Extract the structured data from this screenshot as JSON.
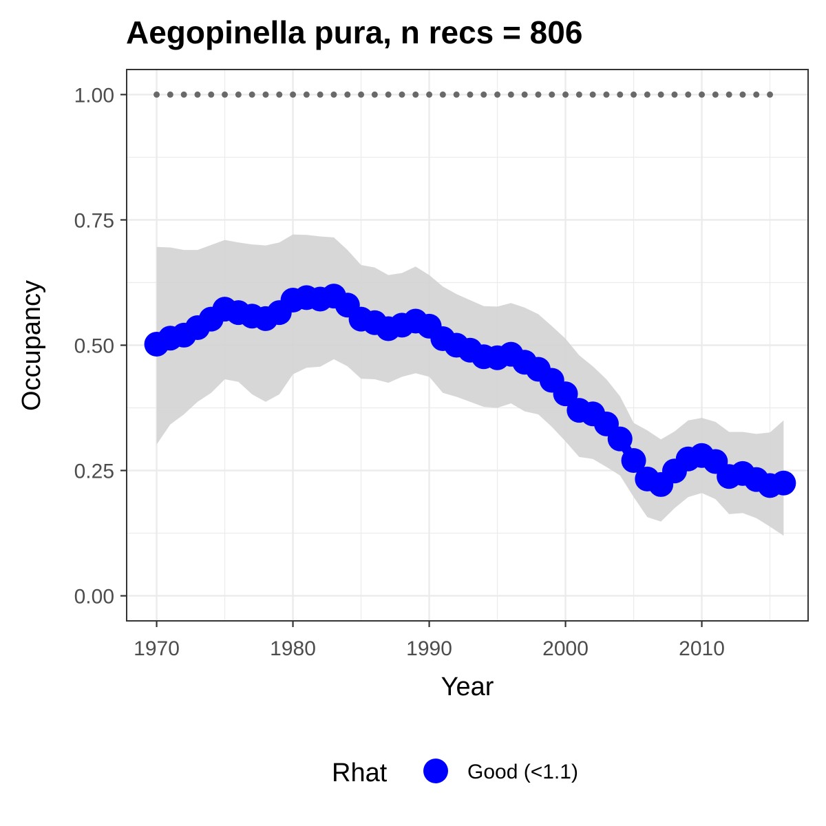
{
  "chart_data": {
    "type": "line",
    "title": "Aegopinella pura, n recs = 806",
    "xlabel": "Year",
    "ylabel": "Occupancy",
    "xlim": [
      1967.8,
      2017.8
    ],
    "ylim": [
      -0.05,
      1.05
    ],
    "x_ticks": [
      1970,
      1980,
      1990,
      2000,
      2010
    ],
    "x_tick_labels": [
      "1970",
      "1980",
      "1990",
      "2000",
      "2010"
    ],
    "y_ticks": [
      0,
      0.25,
      0.5,
      0.75,
      1.0
    ],
    "y_tick_labels": [
      "0.00",
      "0.25",
      "0.50",
      "0.75",
      "1.00"
    ],
    "grid": true,
    "x": [
      1970,
      1971,
      1972,
      1973,
      1974,
      1975,
      1976,
      1977,
      1978,
      1979,
      1980,
      1981,
      1982,
      1983,
      1984,
      1985,
      1986,
      1987,
      1988,
      1989,
      1990,
      1991,
      1992,
      1993,
      1994,
      1995,
      1996,
      1997,
      1998,
      1999,
      2000,
      2001,
      2002,
      2003,
      2004,
      2005,
      2006,
      2007,
      2008,
      2009,
      2010,
      2011,
      2012,
      2013,
      2014,
      2015,
      2016
    ],
    "series": [
      {
        "name": "Good (<1.1)",
        "color": "#0000ff",
        "values": [
          0.502,
          0.514,
          0.52,
          0.535,
          0.552,
          0.572,
          0.565,
          0.558,
          0.553,
          0.565,
          0.59,
          0.595,
          0.592,
          0.598,
          0.58,
          0.552,
          0.545,
          0.533,
          0.54,
          0.548,
          0.538,
          0.513,
          0.5,
          0.49,
          0.477,
          0.475,
          0.482,
          0.466,
          0.452,
          0.43,
          0.403,
          0.37,
          0.363,
          0.343,
          0.313,
          0.27,
          0.233,
          0.222,
          0.249,
          0.273,
          0.28,
          0.268,
          0.238,
          0.244,
          0.232,
          0.22,
          0.225
        ]
      }
    ],
    "ci_lower": [
      0.302,
      0.342,
      0.362,
      0.387,
      0.405,
      0.432,
      0.427,
      0.402,
      0.387,
      0.402,
      0.442,
      0.455,
      0.457,
      0.472,
      0.458,
      0.433,
      0.432,
      0.425,
      0.437,
      0.444,
      0.437,
      0.405,
      0.397,
      0.387,
      0.377,
      0.375,
      0.384,
      0.368,
      0.362,
      0.337,
      0.308,
      0.277,
      0.273,
      0.257,
      0.24,
      0.197,
      0.157,
      0.148,
      0.175,
      0.197,
      0.205,
      0.193,
      0.163,
      0.165,
      0.155,
      0.138,
      0.12
    ],
    "ci_upper": [
      0.696,
      0.695,
      0.69,
      0.69,
      0.7,
      0.71,
      0.705,
      0.701,
      0.699,
      0.705,
      0.721,
      0.72,
      0.717,
      0.715,
      0.69,
      0.66,
      0.655,
      0.64,
      0.644,
      0.657,
      0.64,
      0.617,
      0.602,
      0.59,
      0.578,
      0.577,
      0.584,
      0.575,
      0.562,
      0.538,
      0.513,
      0.48,
      0.458,
      0.432,
      0.398,
      0.345,
      0.33,
      0.312,
      0.328,
      0.35,
      0.355,
      0.347,
      0.327,
      0.327,
      0.323,
      0.326,
      0.35
    ],
    "ci_color": "#d3d3d3",
    "reference_points": {
      "x": [
        1970,
        1971,
        1972,
        1973,
        1974,
        1975,
        1976,
        1977,
        1978,
        1979,
        1980,
        1981,
        1982,
        1983,
        1984,
        1985,
        1986,
        1987,
        1988,
        1989,
        1990,
        1991,
        1992,
        1993,
        1994,
        1995,
        1996,
        1997,
        1998,
        1999,
        2000,
        2001,
        2002,
        2003,
        2004,
        2005,
        2006,
        2007,
        2008,
        2009,
        2010,
        2011,
        2012,
        2013,
        2014,
        2015
      ],
      "y": 1.0,
      "color": "#696969"
    },
    "legend": {
      "title": "Rhat",
      "label": "Good (<1.1)",
      "color": "#0000ff",
      "position": "bottom"
    }
  }
}
